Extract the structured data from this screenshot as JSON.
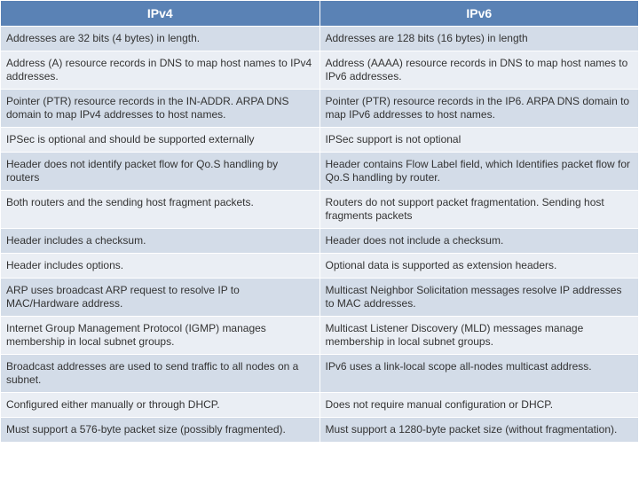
{
  "table": {
    "header_bg": "#5a82b5",
    "header_fg": "#ffffff",
    "band_a_bg": "#d3dce8",
    "band_b_bg": "#eaeef4",
    "text_color": "#333333",
    "border_color": "#ffffff",
    "header_fontsize": 14,
    "cell_fontsize": 12,
    "columns": [
      "IPv4",
      "IPv6"
    ],
    "rows": [
      [
        "Addresses are 32 bits (4 bytes) in length.",
        "Addresses are 128 bits (16 bytes) in length"
      ],
      [
        "Address (A) resource records in DNS to map host names to IPv4 addresses.",
        "Address (AAAA) resource records in DNS to map host names to IPv6 addresses."
      ],
      [
        "Pointer (PTR) resource records in the IN-ADDR. ARPA DNS domain to map IPv4 addresses to host names.",
        "Pointer (PTR) resource records in the IP6. ARPA DNS domain to map IPv6 addresses to host names."
      ],
      [
        "IPSec is optional and should be supported externally",
        "IPSec support is not optional"
      ],
      [
        "Header does not identify packet flow for Qo.S handling by routers",
        "Header contains Flow Label field, which Identifies packet flow for Qo.S handling by router."
      ],
      [
        "Both routers and the sending host fragment packets.",
        "Routers do not support packet fragmentation. Sending host fragments packets"
      ],
      [
        "Header includes a checksum.",
        "Header does not include a checksum."
      ],
      [
        "Header includes options.",
        "Optional data is supported as extension headers."
      ],
      [
        "ARP uses broadcast ARP request to resolve IP to MAC/Hardware address.",
        "Multicast Neighbor Solicitation messages resolve IP addresses to MAC addresses."
      ],
      [
        "Internet Group Management Protocol (IGMP) manages membership in local subnet groups.",
        "Multicast Listener Discovery (MLD) messages manage membership in local subnet groups."
      ],
      [
        "Broadcast addresses are used to send traffic to all nodes on a subnet.",
        "IPv6 uses a link-local scope all-nodes multicast address."
      ],
      [
        "Configured either manually or through DHCP.",
        "Does not require manual configuration or DHCP."
      ],
      [
        "Must support a 576-byte packet size (possibly fragmented).",
        "Must support a 1280-byte packet size (without fragmentation)."
      ]
    ]
  }
}
